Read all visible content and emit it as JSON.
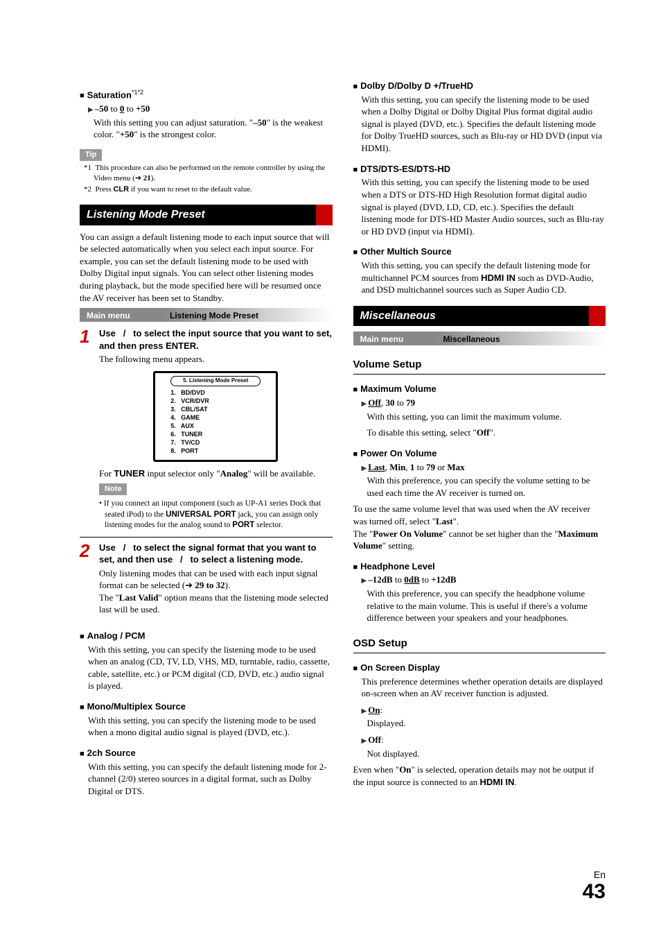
{
  "left": {
    "saturation": {
      "title": "Saturation",
      "sup": "*1*2",
      "range": {
        "low": "–50",
        "mid": "0",
        "high": "+50"
      },
      "desc_a": "With this setting you can adjust saturation. \"",
      "desc_b": "\" is the weakest color. \"",
      "desc_c": "\" is the strongest color.",
      "low_bold": "–50",
      "high_bold": "+50"
    },
    "tip_label": "Tip",
    "fn1": {
      "mark": "*1",
      "text_a": "This procedure can also be performed on the remote controller by using the Video menu (",
      "text_b": ").",
      "page": "21"
    },
    "fn2": {
      "mark": "*2",
      "text_a": "Press ",
      "clr": "CLR",
      "text_b": " if you want to reset to the default value."
    },
    "lmp": {
      "title": "Listening Mode Preset",
      "intro": "You can assign a default listening mode to each input source that will be selected automatically when you select each input source. For example, you can set the default listening mode to be used with Dolby Digital input signals. You can select other listening modes during playback, but the mode specified here will be resumed once the AV receiver has been set to Standby.",
      "menu_left": "Main menu",
      "menu_right": "Listening Mode Preset",
      "step1": {
        "lead_a": "Use ",
        "lead_b": "/",
        "lead_c": " to select the input source that you want to set, and then press ",
        "enter": "ENTER",
        "lead_d": ".",
        "follow": "The following menu appears.",
        "monitor_title": "5.   Listening Mode Preset",
        "items": [
          "1.   BD/DVD",
          "2.   VCR/DVR",
          "3.   CBL/SAT",
          "4.   GAME",
          "5.   AUX",
          "6.   TUNER",
          "7.   TV/CD",
          "8.   PORT"
        ],
        "for_a": "For ",
        "tuner": "TUNER",
        "for_b": " input selector only \"",
        "analog": "Analog",
        "for_c": "\" will be available.",
        "note_label": "Note",
        "note_text_a": "If you connect an input component (such as UP-A1 series Dock that seated iPod) to the ",
        "up": "UNIVERSAL PORT",
        "note_text_b": " jack, you can assign only listening modes for the analog sound to ",
        "port": "PORT",
        "note_text_c": " selector."
      },
      "step2": {
        "lead_a": "Use ",
        "lead_b": "/",
        "lead_c": " to select the signal format that you want to set, and then use ",
        "lead_d": "/",
        "lead_e": " to select a listening mode.",
        "body_a": "Only listening modes that can be used with each input signal format can be selected (",
        "pages": "29 to 32",
        "body_b": ").",
        "body_c": "The \"",
        "lv": "Last Valid",
        "body_d": "\" option means that the listening mode selected last will be used."
      }
    },
    "analog_pcm": {
      "title": "Analog / PCM",
      "text": "With this setting, you can specify the listening mode to be used when an analog (CD, TV, LD, VHS, MD, turntable, radio, cassette, cable, satellite, etc.) or PCM digital (CD, DVD, etc.) audio signal is played."
    },
    "mono": {
      "title": "Mono/Multiplex Source",
      "text": "With this setting, you can specify the listening mode to be used when a mono digital audio signal is played (DVD, etc.)."
    },
    "twoch": {
      "title": "2ch Source",
      "text": "With this setting, you can specify the default listening mode for 2-channel (2/0) stereo sources in a digital format, such as Dolby Digital or DTS."
    }
  },
  "right": {
    "dolby": {
      "title": "Dolby D/Dolby D +/TrueHD",
      "text": "With this setting, you can specify the listening mode to be used when a Dolby Digital or Dolby Digital Plus format digital audio signal is played (DVD, etc.). Specifies the default listening mode for Dolby TrueHD sources, such as Blu-ray or HD DVD (input via HDMI)."
    },
    "dts": {
      "title": "DTS/DTS-ES/DTS-HD",
      "text": "With this setting, you can specify the listening mode to be used when a DTS or DTS-HD High Resolution format digital audio signal is played (DVD, LD, CD, etc.). Specifies the default listening mode for DTS-HD Master Audio sources, such as Blu-ray or HD DVD (input via HDMI)."
    },
    "other": {
      "title": "Other Multich Source",
      "text_a": "With this setting, you can specify the default listening mode for multichannel PCM sources from ",
      "hdmi": "HDMI IN",
      "text_b": " such as DVD-Audio, and DSD multichannel sources such as Super Audio CD."
    },
    "misc": {
      "title": "Miscellaneous",
      "menu_left": "Main menu",
      "menu_right": "Miscellaneous"
    },
    "vol_setup": "Volume Setup",
    "max_vol": {
      "title": "Maximum Volume",
      "range_a": "Off",
      "range_b": "30",
      "range_c": "79",
      "desc": "With this setting, you can limit the maximum volume.",
      "disable_a": "To disable this setting, select \"",
      "off": "Off",
      "disable_b": "\"."
    },
    "pon_vol": {
      "title": "Power On Volume",
      "r1": "Last",
      "r2": "Min",
      "r3": "1",
      "r4": "79",
      "r5": "Max",
      "desc": "With this preference, you can specify the volume setting to be used each time the AV receiver is turned on.",
      "para1_a": "To use the same volume level that was used when the AV receiver was turned off, select \"",
      "last": "Last",
      "para1_b": "\".",
      "para2_a": "The \"",
      "pov": "Power On Volume",
      "para2_b": "\" cannot be set higher than the \"",
      "mv": "Maximum Volume",
      "para2_c": "\" setting."
    },
    "hp": {
      "title": "Headphone Level",
      "low": "–12dB",
      "mid": "0dB",
      "high": "+12dB",
      "desc": "With this preference, you can specify the headphone volume relative to the main volume. This is useful if there's a volume difference between your speakers and your headphones."
    },
    "osd_setup": "OSD Setup",
    "osd": {
      "title": "On Screen Display",
      "intro": "This preference determines whether operation details are displayed on-screen when an AV receiver function is adjusted.",
      "on": "On",
      "on_desc": "Displayed.",
      "off": "Off",
      "off_desc": "Not displayed.",
      "foot_a": "Even when \"",
      "on2": "On",
      "foot_b": "\" is selected, operation details may not be output if the input source is connected to an ",
      "hdmi": "HDMI IN",
      "foot_c": "."
    }
  },
  "page": {
    "lang": "En",
    "num": "43"
  }
}
